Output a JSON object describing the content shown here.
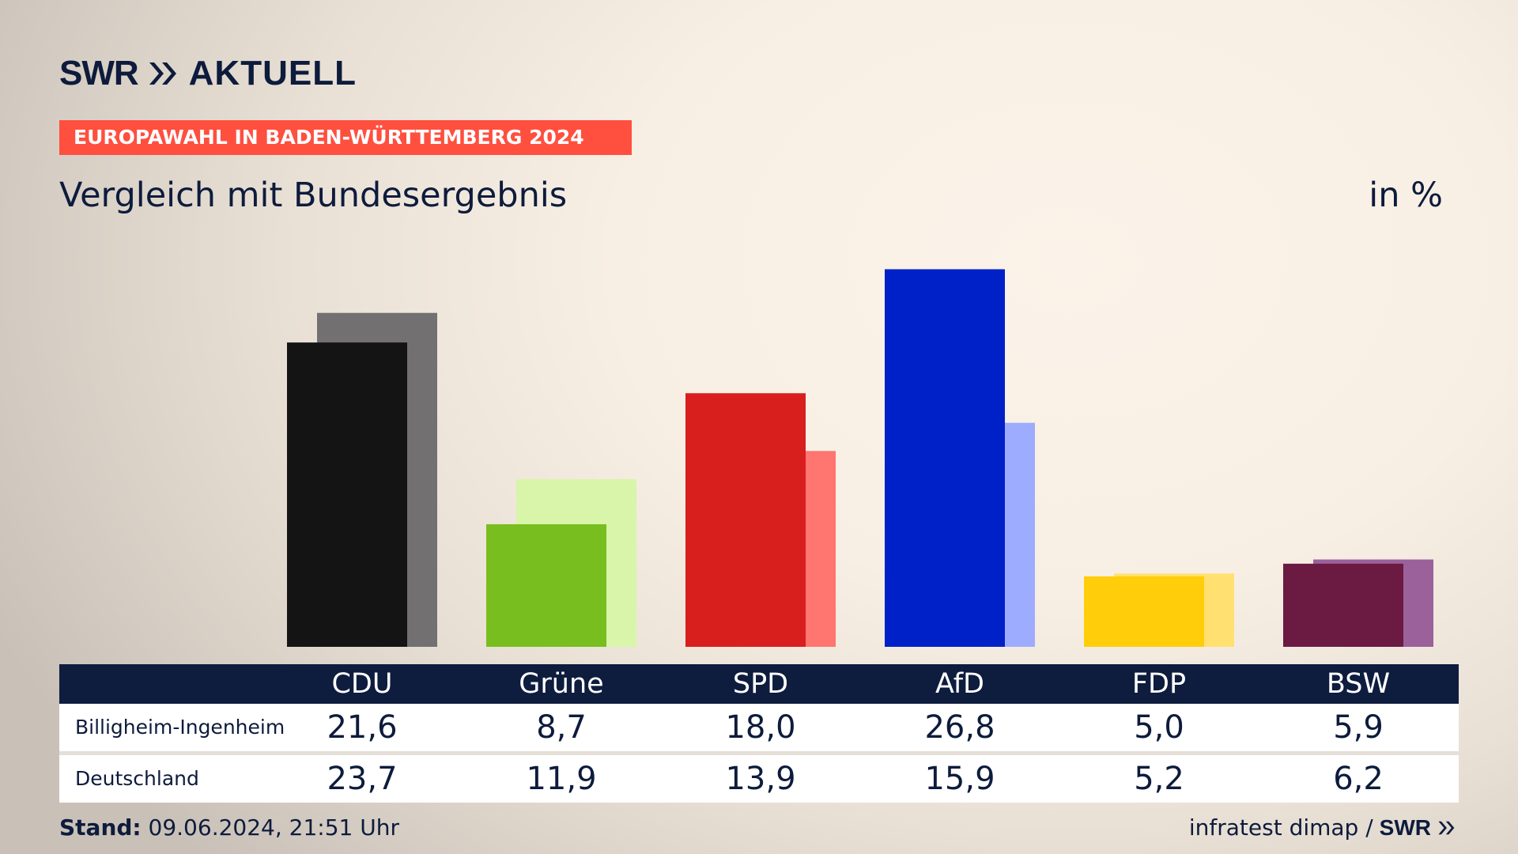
{
  "brand": {
    "swr": "SWR",
    "aktuell": "AKTUELL",
    "logo_icon": "double-chevron-right-icon"
  },
  "banner": "EUROPAWAHL IN BADEN-WÜRTTEMBERG 2024",
  "subtitle": "Vergleich mit Bundesergebnis",
  "unit": "in %",
  "chart_data": {
    "type": "bar",
    "categories": [
      "CDU",
      "Grüne",
      "SPD",
      "AfD",
      "FDP",
      "BSW"
    ],
    "series": [
      {
        "name": "Billigheim-Ingenheim",
        "values": [
          21.6,
          8.7,
          18.0,
          26.8,
          5.0,
          5.9
        ]
      },
      {
        "name": "Deutschland",
        "values": [
          23.7,
          11.9,
          13.9,
          15.9,
          5.2,
          6.2
        ]
      }
    ],
    "colors": {
      "primary": [
        "#141414",
        "#78be1e",
        "#d91e1e",
        "#0021c8",
        "#ffcd0a",
        "#6b1a42"
      ],
      "secondary": [
        "#727070",
        "#d8f5aa",
        "#ff7570",
        "#9eacff",
        "#ffe070",
        "#9b619b"
      ]
    },
    "ylim": [
      0,
      27.5
    ],
    "grid": false
  },
  "table": {
    "headers": [
      "CDU",
      "Grüne",
      "SPD",
      "AfD",
      "FDP",
      "BSW"
    ],
    "rows": [
      {
        "label": "Billigheim-Ingenheim",
        "values": [
          "21,6",
          "8,7",
          "18,0",
          "26,8",
          "5,0",
          "5,9"
        ]
      },
      {
        "label": "Deutschland",
        "values": [
          "23,7",
          "11,9",
          "13,9",
          "15,9",
          "5,2",
          "6,2"
        ]
      }
    ]
  },
  "footer": {
    "stand_label": "Stand:",
    "stand_value": "09.06.2024, 21:51 Uhr",
    "source": "infratest dimap /",
    "source_brand": "SWR"
  }
}
